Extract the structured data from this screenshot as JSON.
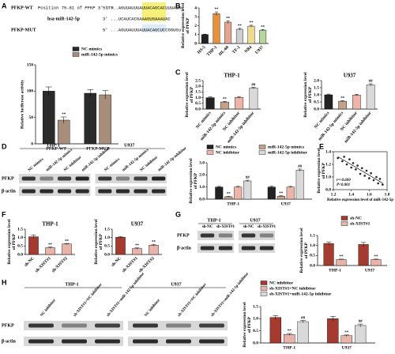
{
  "panel_labels": [
    "A",
    "B",
    "C",
    "D",
    "E",
    "F",
    "G",
    "H"
  ],
  "sequences": [
    {
      "label": "PFKP-WT",
      "note": "Position 75-81 of PFKP 3' UTR",
      "seq": "5' ...AGUUAUUUAUUACAGCACUUUAUGu"
    },
    {
      "label": "hsa-miR-142-5p",
      "seq": "3' ...UCAUCACGAAAGUGAAAUAC"
    },
    {
      "label": "PFKP-MUT",
      "seq": "5' ...AGUUAUUUAUUACAGCUCCGGUGu"
    }
  ],
  "blots": [
    {
      "groups": [
        "THP-1",
        "U937"
      ],
      "lanes": [
        "NC mimics",
        "miR-142-5p mimics",
        "NC inhibitor",
        "miR-142-5p inhibitor"
      ],
      "rows": [
        "PFKP",
        "β-actin"
      ]
    },
    {
      "groups": [
        "THP-1",
        "U937"
      ],
      "lanes": [
        "sh-NC",
        "sh-XIST#1"
      ],
      "rows": [
        "PFKP",
        "β-actin"
      ]
    },
    {
      "groups": [
        "THP-1",
        "U937"
      ],
      "lanes": [
        "NC inhibitor",
        "sh-XIST#1+NC inhibitor",
        "sh-XIST#1+miR-142-5p inhibitor"
      ],
      "rows": [
        "PFKP",
        "β-actin"
      ]
    }
  ],
  "chart_data": [
    {
      "type": "bar",
      "ylabel": "Relative luciferase activity",
      "categories": [
        "PFKP-WT",
        "PFKP-MUT"
      ],
      "series": [
        {
          "name": "NC mimics",
          "color": "#2b2b2b",
          "values": [
            100,
            96
          ],
          "errors": [
            8,
            7
          ],
          "annotations": [
            null,
            null
          ]
        },
        {
          "name": "miR-142-5p mimics",
          "color": "#a88e7a",
          "values": [
            45,
            93
          ],
          "errors": [
            6,
            8
          ],
          "annotations": [
            "**",
            null
          ]
        }
      ],
      "ylim": [
        0,
        150
      ],
      "yticks": [
        0,
        50,
        100,
        150
      ]
    },
    {
      "type": "bar",
      "ylabel": "Relative expression level of PFKP",
      "categories": [
        "HS-5",
        "THP-1",
        "HL-60",
        "TF-1",
        "NB4",
        "U937"
      ],
      "values": [
        1,
        3.35,
        2.4,
        1.6,
        1.95,
        1.5
      ],
      "errors": [
        0.05,
        0.2,
        0.15,
        0.1,
        0.1,
        0.08
      ],
      "colors": [
        "#222222",
        "#e8913a",
        "#e6a58f",
        "#cfcfcf",
        "#eedc8c",
        "#b4d89a"
      ],
      "annotations": [
        null,
        "**",
        "**",
        "**",
        "**",
        "**"
      ],
      "ylim": [
        0,
        4
      ],
      "yticks": [
        0,
        1,
        2,
        3,
        4
      ]
    },
    {
      "type": "bar",
      "title": "THP-1",
      "ylabel": "Relative expression level of PFKP",
      "categories": [
        "NC mimics",
        "miR-142-5p mimics",
        "NC inhibitor",
        "miR-142-5p inhibitor"
      ],
      "values": [
        1.0,
        0.62,
        1.02,
        1.85
      ],
      "errors": [
        0.06,
        0.05,
        0.08,
        0.07
      ],
      "colors": [
        "#222222",
        "#c4a28a",
        "#efb4a8",
        "#d9d9d9"
      ],
      "annotations": [
        null,
        "**",
        null,
        "##"
      ],
      "ylim": [
        0,
        2.5
      ],
      "yticks": [
        {
          "value": 0,
          "label": "0.0"
        },
        0.5,
        {
          "value": 1,
          "label": "1.0"
        },
        1.5,
        {
          "value": 2,
          "label": "2.0"
        },
        2.5
      ]
    },
    {
      "type": "bar",
      "title": "U937",
      "ylabel": "Relative expression level of PFKP",
      "categories": [
        "NC mimics",
        "miR-142-5p mimics",
        "NC inhibitor",
        "miR-142-5p inhibitor"
      ],
      "values": [
        1.0,
        0.55,
        0.98,
        1.7
      ],
      "errors": [
        0.05,
        0.04,
        0.06,
        0.08
      ],
      "colors": [
        "#222222",
        "#c4a28a",
        "#efb4a8",
        "#d9d9d9"
      ],
      "annotations": [
        null,
        "**",
        null,
        "##"
      ],
      "ylim": [
        0,
        2
      ],
      "yticks": [
        {
          "value": 0,
          "label": "0.0"
        },
        0.5,
        {
          "value": 1,
          "label": "1.0"
        },
        1.5,
        {
          "value": 2,
          "label": "2.0"
        }
      ]
    },
    {
      "type": "bar",
      "ylabel": "Relative expression level of PFKP",
      "categories": [
        "THP-1",
        "U937"
      ],
      "series": [
        {
          "name": "NC mimics",
          "color": "#222222",
          "values": [
            1.0,
            1.0
          ],
          "errors": [
            0.05,
            0.06
          ],
          "annotations": [
            null,
            null
          ]
        },
        {
          "name": "miR-142-5p mimics",
          "color": "#c4a28a",
          "values": [
            0.2,
            0.25
          ],
          "errors": [
            0.03,
            0.03
          ],
          "annotations": [
            "**",
            "**"
          ]
        },
        {
          "name": "NC inhibitor",
          "color": "#efb4a8",
          "values": [
            1.0,
            1.0
          ],
          "errors": [
            0.05,
            0.05
          ],
          "annotations": [
            null,
            null
          ]
        },
        {
          "name": "miR-142-5p inhibitor",
          "color": "#d9d9d9",
          "values": [
            1.5,
            2.4
          ],
          "errors": [
            0.06,
            0.08
          ],
          "annotations": [
            "##",
            "##"
          ]
        }
      ],
      "ylim": [
        0,
        3
      ],
      "yticks": [
        {
          "value": 0,
          "label": "0.0"
        },
        {
          "value": 1,
          "label": "1.0"
        },
        {
          "value": 2,
          "label": "2.0"
        },
        {
          "value": 3,
          "label": "3.0"
        }
      ]
    },
    {
      "type": "scatter",
      "xlabel": "Relative expression level of miR-142-5p",
      "ylabel": "Relative expression level of PFKP",
      "annotations": [
        "r=-0.609",
        "P<0.001"
      ],
      "x": [
        1.25,
        1.3,
        1.32,
        1.35,
        1.38,
        1.4,
        1.42,
        1.45,
        1.47,
        1.5,
        1.52,
        1.55,
        1.57,
        1.6,
        1.62,
        1.65,
        1.68,
        1.7,
        1.72,
        1.75
      ],
      "values": [
        1.3,
        1.25,
        1.32,
        1.2,
        1.28,
        1.15,
        1.22,
        1.12,
        1.18,
        1.05,
        1.14,
        1.02,
        1.1,
        0.98,
        1.06,
        0.95,
        1.0,
        0.9,
        0.97,
        0.88
      ],
      "color": "#222222",
      "xlim": [
        1.2,
        1.8
      ],
      "xticks": [
        1.2,
        1.4,
        1.6,
        1.8
      ],
      "ylim": [
        0.8,
        1.4
      ],
      "yticks": [
        0.8,
        {
          "value": 1,
          "label": "1.0"
        },
        1.2,
        1.4
      ]
    },
    {
      "type": "bar",
      "title": "THP-1",
      "ylabel": "Relative expression level of PFKP",
      "categories": [
        "sh-NC",
        "sh-XIST#1",
        "sh-XIST#2"
      ],
      "values": [
        1.05,
        0.4,
        0.62
      ],
      "errors": [
        0.1,
        0.04,
        0.03
      ],
      "colors": [
        "#a63a2f",
        "#e9b3a8",
        "#e9b3a8"
      ],
      "annotations": [
        null,
        "**",
        "**"
      ],
      "ylim": [
        0,
        1.5
      ],
      "yticks": [
        {
          "value": 0,
          "label": "0.0"
        },
        0.5,
        {
          "value": 1,
          "label": "1.0"
        },
        1.5
      ]
    },
    {
      "type": "bar",
      "title": "U937",
      "ylabel": "Relative expression level of PFKP",
      "categories": [
        "sh-NC",
        "sh-XIST#1",
        "sh-XIST#2"
      ],
      "values": [
        1.02,
        0.35,
        0.55
      ],
      "errors": [
        0.05,
        0.04,
        0.05
      ],
      "colors": [
        "#a63a2f",
        "#e9b3a8",
        "#e9b3a8"
      ],
      "annotations": [
        null,
        "**",
        "**"
      ],
      "ylim": [
        0,
        1.5
      ],
      "yticks": [
        {
          "value": 0,
          "label": "0.0"
        },
        0.5,
        {
          "value": 1,
          "label": "1.0"
        },
        1.5
      ]
    },
    {
      "type": "bar",
      "ylabel": "Relative expression level of PFKP",
      "categories": [
        "THP-1",
        "U937"
      ],
      "series": [
        {
          "name": "sh-NC",
          "color": "#a63a2f",
          "values": [
            1.1,
            1.05
          ],
          "errors": [
            0.08,
            0.1
          ],
          "annotations": [
            null,
            null
          ]
        },
        {
          "name": "sh-XIST#1",
          "color": "#e9b3a8",
          "values": [
            0.3,
            0.3
          ],
          "errors": [
            0.02,
            0.02
          ],
          "annotations": [
            "**",
            "**"
          ]
        }
      ],
      "ylim": [
        0,
        1.5
      ],
      "yticks": [
        {
          "value": 0,
          "label": "0.0"
        },
        0.5,
        {
          "value": 1,
          "label": "1.0"
        },
        1.5
      ]
    },
    {
      "type": "bar",
      "ylabel": "Relative expression level of PFKP",
      "categories": [
        "THP-1",
        "U937"
      ],
      "series": [
        {
          "name": "NC inhibitor",
          "color": "#a63a2f",
          "values": [
            1.05,
            1.0
          ],
          "errors": [
            0.08,
            0.1
          ],
          "annotations": [
            null,
            null
          ]
        },
        {
          "name": "sh-XIST#1+NC inhibitor",
          "color": "#e9b3a8",
          "values": [
            0.35,
            0.3
          ],
          "errors": [
            0.04,
            0.03
          ],
          "annotations": [
            "**",
            "**"
          ]
        },
        {
          "name": "sh-XIST#1+miR-142-5p inhibitor",
          "color": "#d9d9d9",
          "values": [
            0.88,
            0.72
          ],
          "errors": [
            0.05,
            0.06
          ],
          "annotations": [
            "##",
            "##"
          ]
        }
      ],
      "ylim": [
        0,
        1.5
      ],
      "yticks": [
        {
          "value": 0,
          "label": "0.0"
        },
        0.5,
        {
          "value": 1,
          "label": "1.0"
        },
        1.5
      ]
    }
  ]
}
